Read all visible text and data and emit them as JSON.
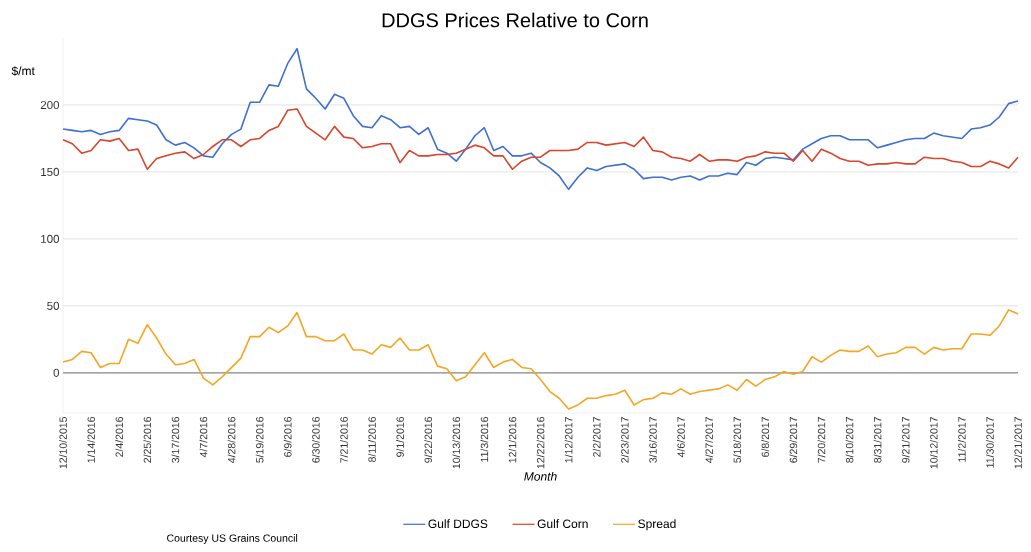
{
  "chart_data": {
    "type": "line",
    "title": "DDGS Prices Relative to Corn",
    "xlabel": "Month",
    "ylabel": "$/mt",
    "categories": [
      "12/10/2015",
      null,
      null,
      "1/14/2016",
      null,
      null,
      "2/4/2016",
      null,
      null,
      "2/25/2016",
      null,
      null,
      "3/17/2016",
      null,
      null,
      "4/7/2016",
      null,
      null,
      "4/28/2016",
      null,
      null,
      "5/19/2016",
      null,
      null,
      "6/9/2016",
      null,
      null,
      "6/30/2016",
      null,
      null,
      "7/21/2016",
      null,
      null,
      "8/11/2016",
      null,
      null,
      "9/1/2016",
      null,
      null,
      "9/22/2016",
      null,
      null,
      "10/13/2016",
      null,
      null,
      "11/3/2016",
      null,
      null,
      "12/1/2016",
      null,
      null,
      "12/22/2016",
      null,
      null,
      "1/12/2017",
      null,
      null,
      "2/2/2017",
      null,
      null,
      "2/23/2017",
      null,
      null,
      "3/16/2017",
      null,
      null,
      "4/6/2017",
      null,
      null,
      "4/27/2017",
      null,
      null,
      "5/18/2017",
      null,
      null,
      "6/8/2017",
      null,
      null,
      "6/29/2017",
      null,
      null,
      "7/20/2017",
      null,
      null,
      "8/10/2017",
      null,
      null,
      "8/31/2017",
      null,
      null,
      "9/21/2017",
      null,
      null,
      "10/12/2017",
      null,
      null,
      "11/2/2017",
      null,
      null,
      "11/30/2017",
      null,
      null,
      "12/21/2017"
    ],
    "series": [
      {
        "name": "Gulf DDGS",
        "color": "#3f6fd1",
        "values": [
          182,
          181,
          180,
          181,
          178,
          180,
          181,
          190,
          189,
          188,
          185,
          174,
          170,
          172,
          168,
          162,
          161,
          171,
          178,
          182,
          202,
          202,
          215,
          214,
          231,
          242,
          212,
          205,
          197,
          208,
          205,
          192,
          184,
          183,
          192,
          189,
          183,
          184,
          178,
          183,
          167,
          164,
          158,
          167,
          177,
          183,
          166,
          169,
          162,
          162,
          164,
          157,
          153,
          147,
          137,
          146,
          153,
          151,
          154,
          155,
          156,
          152,
          145,
          146,
          146,
          144,
          146,
          147,
          144,
          147,
          147,
          149,
          148,
          157,
          155,
          160,
          161,
          160,
          159,
          167,
          171,
          175,
          177,
          177,
          174,
          174,
          174,
          168,
          170,
          172,
          174,
          175,
          175,
          179,
          177,
          176,
          175,
          182,
          183,
          185,
          191,
          201,
          203
        ]
      },
      {
        "name": "Gulf Corn",
        "color": "#d9442b",
        "values": [
          174,
          171,
          164,
          166,
          174,
          173,
          175,
          166,
          167,
          152,
          160,
          162,
          164,
          165,
          160,
          163,
          169,
          174,
          174,
          169,
          174,
          175,
          181,
          184,
          196,
          197,
          184,
          179,
          174,
          184,
          176,
          175,
          168,
          169,
          171,
          171,
          157,
          166,
          162,
          162,
          163,
          163,
          164,
          167,
          170,
          168,
          162,
          162,
          152,
          158,
          161,
          161,
          166,
          166,
          166,
          167,
          172,
          172,
          170,
          171,
          172,
          169,
          176,
          166,
          165,
          161,
          160,
          158,
          163,
          158,
          159,
          159,
          158,
          161,
          162,
          165,
          164,
          164,
          158,
          166,
          158,
          167,
          164,
          160,
          158,
          158,
          155,
          156,
          156,
          157,
          156,
          156,
          161,
          160,
          160,
          158,
          157,
          154,
          154,
          158,
          156,
          153,
          161
        ]
      },
      {
        "name": "Spread",
        "color": "#f5a623",
        "values": [
          8,
          10,
          16,
          15,
          4,
          7,
          7,
          25,
          22,
          36,
          26,
          14,
          6,
          7,
          10,
          -4,
          -9,
          -3,
          4,
          11,
          27,
          27,
          34,
          30,
          35,
          45,
          27,
          27,
          24,
          24,
          29,
          17,
          17,
          14,
          21,
          19,
          26,
          17,
          17,
          21,
          5,
          3,
          -6,
          -3,
          6,
          15,
          4,
          8,
          10,
          4,
          3,
          -5,
          -14,
          -19,
          -27,
          -24,
          -19,
          -19,
          -17,
          -16,
          -13,
          -24,
          -20,
          -19,
          -15,
          -16,
          -12,
          -16,
          -14,
          -13,
          -12,
          -9,
          -13,
          -5,
          -10,
          -5,
          -3,
          1,
          -1,
          1,
          12,
          8,
          13,
          17,
          16,
          16,
          20,
          12,
          14,
          15,
          19,
          19,
          14,
          19,
          17,
          18,
          18,
          29,
          29,
          28,
          35,
          47,
          44
        ]
      }
    ],
    "ylim": [
      -30,
      250
    ],
    "yticks": [
      0,
      50,
      100,
      150,
      200
    ],
    "grid": "y",
    "legend": "bottom",
    "marker": "none",
    "line_style": "solid",
    "ref_lines": [
      {
        "axis": "y",
        "value": 0,
        "color": "#8c8c8c"
      }
    ],
    "annotations": [
      "Courtesy  US Grains Council"
    ]
  }
}
